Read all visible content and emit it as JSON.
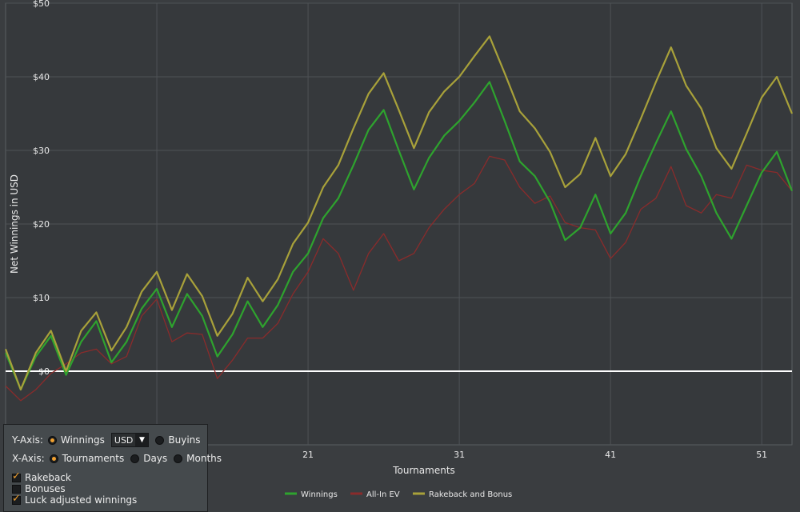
{
  "chart_data": {
    "type": "line",
    "title": "",
    "xlabel": "Tournaments",
    "ylabel": "Net Winnings in USD",
    "xlim": [
      1,
      53
    ],
    "ylim": [
      -10,
      50
    ],
    "x_ticks": [
      "21",
      "31",
      "41",
      "51"
    ],
    "y_ticks": [
      "$0",
      "$10",
      "$20",
      "$30",
      "$40",
      "$50"
    ],
    "grid": true,
    "legend_position": "bottom",
    "x": [
      1,
      2,
      3,
      4,
      5,
      6,
      7,
      8,
      9,
      10,
      11,
      12,
      13,
      14,
      15,
      16,
      17,
      18,
      19,
      20,
      21,
      22,
      23,
      24,
      25,
      26,
      27,
      28,
      29,
      30,
      31,
      32,
      33,
      34,
      35,
      36,
      37,
      38,
      39,
      40,
      41,
      42,
      43,
      44,
      45,
      46,
      47,
      48,
      49,
      50,
      51,
      52,
      53
    ],
    "series": [
      {
        "name": "Winnings",
        "color": "#2ea32e",
        "values": [
          2.5,
          -2.5,
          2,
          4.8,
          -0.5,
          4,
          6.8,
          1.2,
          4,
          8.5,
          11.2,
          6,
          10.5,
          7.5,
          2,
          5,
          9.5,
          6,
          9,
          13.5,
          16,
          20.8,
          23.5,
          28,
          32.8,
          35.5,
          30,
          24.7,
          29,
          32,
          34,
          36.5,
          39.3,
          34,
          28.5,
          26.5,
          23,
          17.8,
          19.5,
          24,
          18.7,
          21.5,
          26.5,
          31,
          35.3,
          30.2,
          26.5,
          21.5,
          18,
          22.5,
          27,
          29.8,
          24.5
        ]
      },
      {
        "name": "All-In EV",
        "color": "#8a2b2b",
        "values": [
          -2,
          -4,
          -2.5,
          -0.3,
          1,
          2.5,
          3,
          1,
          2,
          7.5,
          9.8,
          4,
          5.2,
          5,
          -1,
          1.5,
          4.5,
          4.5,
          6.5,
          10.5,
          13.5,
          18,
          16,
          11,
          16,
          18.7,
          15,
          16,
          19.5,
          22,
          24,
          25.5,
          29.2,
          28.7,
          25,
          22.8,
          23.8,
          20.2,
          19.5,
          19.2,
          15.3,
          17.5,
          22,
          23.5,
          27.8,
          22.5,
          21.5,
          24,
          23.5,
          28,
          27.3,
          27,
          24.5
        ]
      },
      {
        "name": "Rakeback and Bonus",
        "color": "#a8a13a",
        "values": [
          3,
          -2.5,
          2.5,
          5.5,
          0,
          5.5,
          8,
          2.8,
          6,
          10.8,
          13.5,
          8.3,
          13.2,
          10.2,
          4.8,
          7.8,
          12.7,
          9.5,
          12.5,
          17.3,
          20.2,
          25,
          28,
          33,
          37.7,
          40.5,
          35.5,
          30.3,
          35.2,
          38,
          40,
          42.8,
          45.5,
          40.5,
          35.3,
          33,
          29.8,
          25,
          26.8,
          31.7,
          26.5,
          29.5,
          34.3,
          39.3,
          44,
          38.8,
          35.7,
          30.3,
          27.5,
          32.3,
          37.2,
          40,
          35
        ]
      }
    ]
  },
  "controls": {
    "y_axis_label": "Y-Axis:",
    "y_opt_winnings": "Winnings",
    "currency_value": "USD",
    "y_opt_buyins": "Buyins",
    "x_axis_label": "X-Axis:",
    "x_opt_tournaments": "Tournaments",
    "x_opt_days": "Days",
    "x_opt_months": "Months",
    "rakeback": "Rakeback",
    "bonuses": "Bonuses",
    "luck_adjusted": "Luck adjusted winnings"
  },
  "colors": {
    "plot_bg": "#36393c",
    "grid": "#4e5256",
    "zero_line": "#ffffff",
    "accent": "#f0a030"
  }
}
